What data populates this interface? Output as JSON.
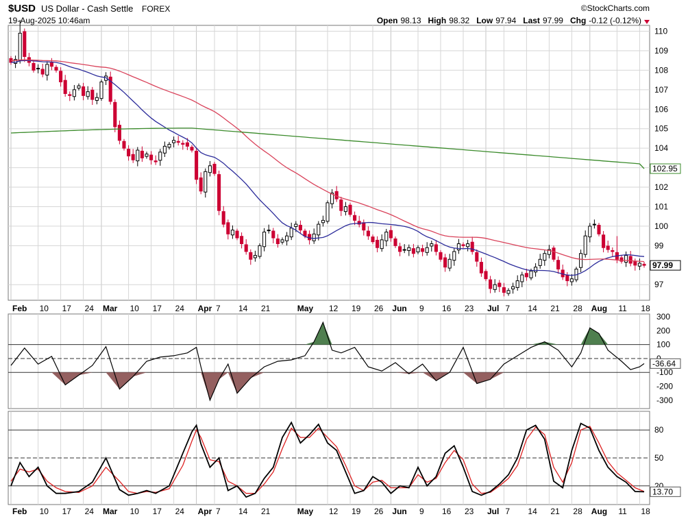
{
  "header": {
    "symbol": "$USD",
    "name": "US Dollar - Cash Settle",
    "exchange": "FOREX",
    "copyright": "©StockCharts.com",
    "datetime": "19-Aug-2025 10:46am",
    "quote": [
      {
        "label": "Open",
        "value": "98.13"
      },
      {
        "label": "High",
        "value": "98.32"
      },
      {
        "label": "Low",
        "value": "97.94"
      },
      {
        "label": "Last",
        "value": "97.99"
      },
      {
        "label": "Chg",
        "value": "-0.12 (-0.12%)"
      }
    ]
  },
  "colors": {
    "up": "#000000",
    "down": "#cc0033",
    "ma_short": "#2a2a9a",
    "ma_mid": "#d9425a",
    "ma_long": "#3a8a2a",
    "cci_fill_pos": "#4f7f4f",
    "cci_fill_neg": "#946060",
    "stoch_k": "#000000",
    "stoch_d": "#dd2222",
    "grid": "#d6d6d6"
  },
  "xaxis": {
    "labels": [
      {
        "text": "Feb",
        "bold": true,
        "t": 0
      },
      {
        "text": "10",
        "t": 6
      },
      {
        "text": "17",
        "t": 11
      },
      {
        "text": "24",
        "t": 16
      },
      {
        "text": "Mar",
        "bold": true,
        "t": 20
      },
      {
        "text": "10",
        "t": 26
      },
      {
        "text": "17",
        "t": 31
      },
      {
        "text": "24",
        "t": 36
      },
      {
        "text": "Apr",
        "bold": true,
        "t": 41
      },
      {
        "text": "7",
        "t": 45
      },
      {
        "text": "14",
        "t": 50
      },
      {
        "text": "21",
        "t": 55
      },
      {
        "text": "May",
        "bold": true,
        "t": 63
      },
      {
        "text": "12",
        "t": 70
      },
      {
        "text": "19",
        "t": 75
      },
      {
        "text": "26",
        "t": 80
      },
      {
        "text": "Jun",
        "bold": true,
        "t": 84
      },
      {
        "text": "9",
        "t": 90
      },
      {
        "text": "16",
        "t": 95
      },
      {
        "text": "23",
        "t": 100
      },
      {
        "text": "Jul",
        "bold": true,
        "t": 105
      },
      {
        "text": "7",
        "t": 109
      },
      {
        "text": "14",
        "t": 114
      },
      {
        "text": "21",
        "t": 119
      },
      {
        "text": "28",
        "t": 124
      },
      {
        "text": "Aug",
        "bold": true,
        "t": 128
      },
      {
        "text": "11",
        "t": 134
      },
      {
        "text": "18",
        "t": 139
      }
    ]
  },
  "chart_data": [
    {
      "type": "candlestick",
      "title": "$USD US Dollar - Cash Settle FOREX",
      "ylim": [
        96.2,
        110.3
      ],
      "yticks": [
        97,
        99,
        100,
        101,
        102,
        103,
        104,
        105,
        106,
        107,
        108,
        109,
        110
      ],
      "grid": true,
      "n_bars": 141,
      "close": [
        108.4,
        108.55,
        109.9,
        108.7,
        108.4,
        108.0,
        108.1,
        107.8,
        108.3,
        108.2,
        108.0,
        107.4,
        106.8,
        106.7,
        107.0,
        107.2,
        106.7,
        106.9,
        106.5,
        106.6,
        107.4,
        107.7,
        106.4,
        105.1,
        104.4,
        104.0,
        103.6,
        103.4,
        103.9,
        103.5,
        103.7,
        103.4,
        103.3,
        103.8,
        104.1,
        104.2,
        104.4,
        104.3,
        104.2,
        104.1,
        103.9,
        102.4,
        101.8,
        102.8,
        103.1,
        102.7,
        100.8,
        100.1,
        99.6,
        99.8,
        99.4,
        99.1,
        98.7,
        98.3,
        98.5,
        99.0,
        99.7,
        99.8,
        99.4,
        99.1,
        99.3,
        99.5,
        99.9,
        100.1,
        99.8,
        99.5,
        99.3,
        99.6,
        100.1,
        100.3,
        101.2,
        101.7,
        101.4,
        100.8,
        101.0,
        100.6,
        100.3,
        100.1,
        99.8,
        99.5,
        99.2,
        98.9,
        99.3,
        99.7,
        99.4,
        99.0,
        98.7,
        98.8,
        98.9,
        98.6,
        98.9,
        98.7,
        98.9,
        99.1,
        98.7,
        98.3,
        97.9,
        98.3,
        98.7,
        99.1,
        99.0,
        99.1,
        98.7,
        98.2,
        97.6,
        97.3,
        96.8,
        97.0,
        96.9,
        96.6,
        96.7,
        96.9,
        97.2,
        97.5,
        97.4,
        97.7,
        97.9,
        98.3,
        98.6,
        98.8,
        98.3,
        97.8,
        97.4,
        97.2,
        97.3,
        97.8,
        98.6,
        99.5,
        100.0,
        100.1,
        99.6,
        98.9,
        98.8,
        98.7,
        98.3,
        98.2,
        98.5,
        98.1,
        98.0,
        98.1,
        97.99
      ]
    },
    {
      "type": "line",
      "name_hint": "cci_panel",
      "ylim": [
        -360,
        320
      ],
      "yticks": [
        -300,
        -200,
        -100,
        0,
        100,
        200,
        300
      ],
      "reference_lines": [
        100,
        0,
        -100
      ],
      "last_value": "-36.64",
      "x": [
        0,
        3,
        6,
        9,
        12,
        15,
        18,
        21,
        24,
        27,
        30,
        33,
        36,
        39,
        41,
        42,
        44,
        46,
        48,
        50,
        53,
        56,
        59,
        62,
        65,
        67,
        69,
        71,
        73,
        76,
        79,
        82,
        85,
        88,
        91,
        94,
        97,
        100,
        103,
        106,
        109,
        112,
        115,
        118,
        121,
        124,
        126,
        128,
        130,
        132,
        135,
        137,
        139,
        140
      ],
      "values": [
        -50,
        75,
        -40,
        15,
        -190,
        -120,
        -50,
        85,
        -220,
        -130,
        -20,
        10,
        20,
        40,
        80,
        -60,
        -300,
        -150,
        -40,
        -250,
        -140,
        -60,
        -20,
        -10,
        20,
        120,
        260,
        60,
        40,
        80,
        -60,
        -90,
        -30,
        -110,
        -40,
        -160,
        -100,
        80,
        -180,
        -150,
        -40,
        20,
        80,
        120,
        60,
        -60,
        40,
        220,
        180,
        60,
        -20,
        -80,
        -60,
        -36.64
      ]
    },
    {
      "type": "line",
      "name_hint": "stochastic_panel",
      "ylim": [
        0,
        100
      ],
      "yticks": [
        20,
        50,
        80
      ],
      "reference_lines": [
        80,
        50,
        20
      ],
      "last_value": "13.70",
      "x": [
        0,
        2,
        4,
        6,
        8,
        10,
        12,
        15,
        18,
        21,
        24,
        26,
        28,
        30,
        32,
        35,
        38,
        40,
        41,
        42,
        44,
        46,
        48,
        50,
        52,
        54,
        56,
        58,
        60,
        62,
        64,
        66,
        68,
        70,
        72,
        74,
        76,
        78,
        80,
        82,
        84,
        86,
        88,
        90,
        92,
        94,
        96,
        98,
        100,
        102,
        104,
        106,
        108,
        110,
        112,
        114,
        116,
        118,
        120,
        122,
        124,
        126,
        128,
        130,
        132,
        134,
        136,
        138,
        140
      ],
      "k": [
        20,
        45,
        30,
        40,
        20,
        12,
        12,
        14,
        24,
        50,
        16,
        10,
        12,
        15,
        12,
        20,
        55,
        78,
        85,
        65,
        40,
        50,
        15,
        20,
        8,
        12,
        28,
        40,
        72,
        88,
        66,
        75,
        86,
        66,
        58,
        35,
        12,
        15,
        30,
        24,
        12,
        20,
        18,
        40,
        20,
        30,
        55,
        63,
        40,
        14,
        10,
        14,
        22,
        32,
        50,
        80,
        85,
        70,
        25,
        18,
        58,
        87,
        82,
        58,
        40,
        30,
        24,
        14,
        13.7
      ],
      "d": [
        25,
        38,
        35,
        38,
        25,
        18,
        14,
        13,
        20,
        40,
        25,
        14,
        12,
        14,
        13,
        17,
        42,
        68,
        80,
        72,
        48,
        46,
        25,
        20,
        12,
        12,
        22,
        35,
        60,
        82,
        72,
        72,
        82,
        72,
        62,
        42,
        20,
        15,
        24,
        26,
        18,
        18,
        18,
        32,
        24,
        28,
        45,
        58,
        48,
        22,
        12,
        13,
        20,
        28,
        42,
        70,
        83,
        75,
        40,
        24,
        45,
        80,
        84,
        66,
        46,
        34,
        26,
        18,
        14
      ]
    }
  ]
}
